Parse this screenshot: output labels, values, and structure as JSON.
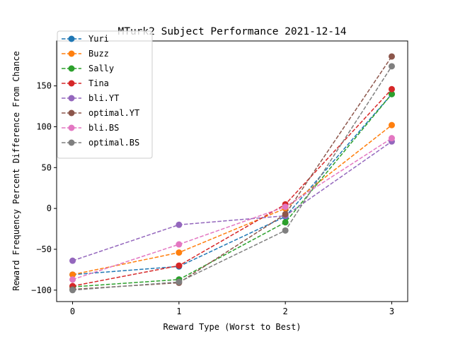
{
  "chart_data": {
    "type": "line",
    "title": "MTurk2 Subject Performance 2021-12-14",
    "xlabel": "Reward Type (Worst to Best)",
    "ylabel": "Reward Frequency Percent Difference From Chance",
    "x": [
      0,
      1,
      2,
      3
    ],
    "x_ticks": [
      "0",
      "1",
      "2",
      "3"
    ],
    "y_ticks": [
      "−100",
      "−50",
      "0",
      "50",
      "100",
      "150"
    ],
    "y_tick_values": [
      -100,
      -50,
      0,
      50,
      100,
      150
    ],
    "xlim": [
      -0.15,
      3.15
    ],
    "ylim": [
      -114,
      205
    ],
    "grid": false,
    "legend_position": "upper-left",
    "line_style": "dashed",
    "marker": "circle",
    "series": [
      {
        "name": "Yuri",
        "color": "#1f77b4",
        "values": [
          -81,
          -71,
          -10,
          140
        ]
      },
      {
        "name": "Buzz",
        "color": "#ff7f0e",
        "values": [
          -81,
          -54,
          0,
          102
        ]
      },
      {
        "name": "Sally",
        "color": "#2ca02c",
        "values": [
          -96,
          -87,
          -17,
          140
        ]
      },
      {
        "name": "Tina",
        "color": "#d62728",
        "values": [
          -95,
          -70,
          5,
          146
        ]
      },
      {
        "name": "bli.YT",
        "color": "#9467bd",
        "values": [
          -64,
          -20,
          -9,
          82
        ]
      },
      {
        "name": "optimal.YT",
        "color": "#8c564b",
        "values": [
          -99,
          -91,
          -7,
          186
        ]
      },
      {
        "name": "bli.BS",
        "color": "#e377c2",
        "values": [
          -87,
          -44,
          2,
          86
        ]
      },
      {
        "name": "optimal.BS",
        "color": "#7f7f7f",
        "values": [
          -100,
          -90,
          -27,
          174
        ]
      }
    ]
  }
}
